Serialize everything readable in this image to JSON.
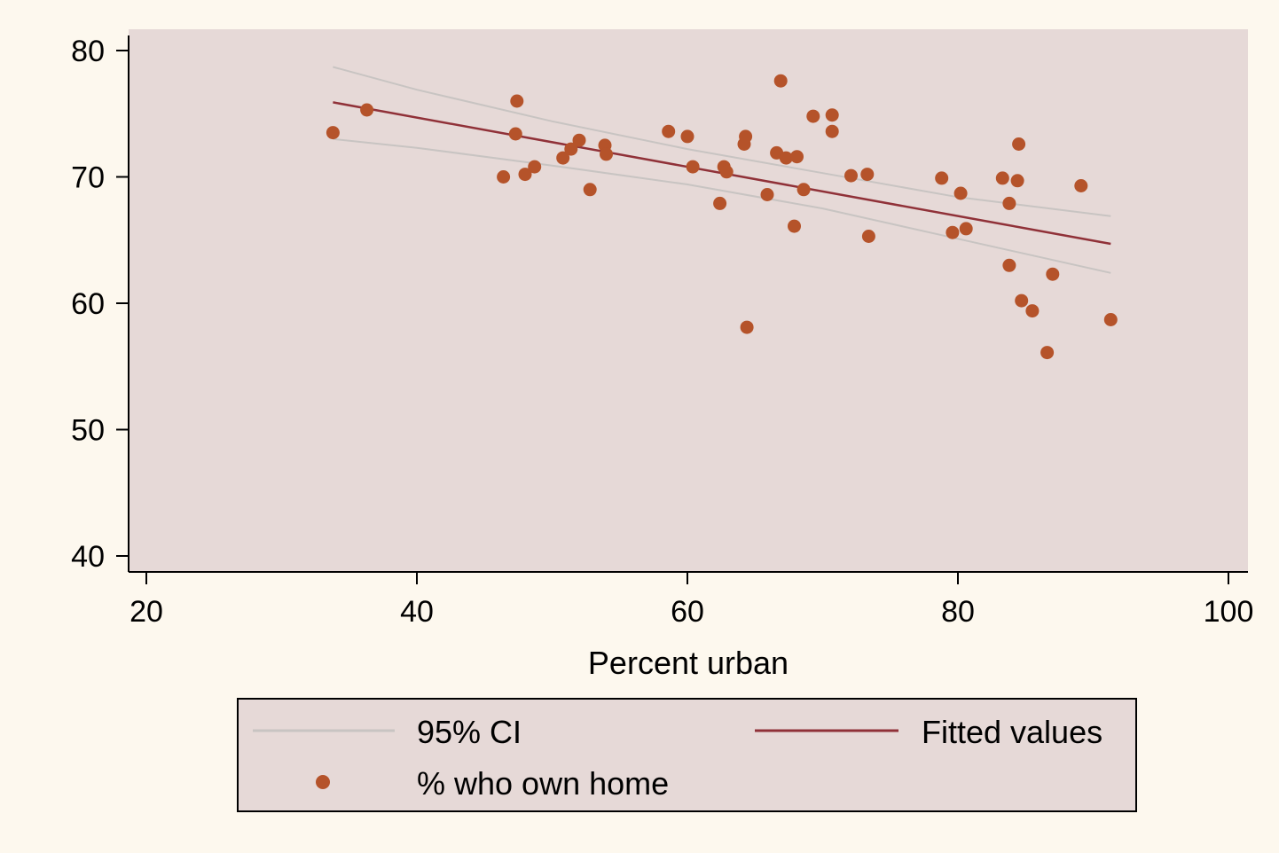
{
  "chart_data": {
    "type": "scatter",
    "title": "",
    "xlabel": "Percent urban",
    "ylabel": "",
    "xlim": [
      20,
      100
    ],
    "ylim": [
      40,
      80
    ],
    "x_ticks": [
      20,
      40,
      60,
      80,
      100
    ],
    "y_ticks": [
      40,
      50,
      60,
      70,
      80
    ],
    "x_tick_labels": [
      "20",
      "40",
      "60",
      "80",
      "100"
    ],
    "y_tick_labels": [
      "40",
      "50",
      "60",
      "70",
      "80"
    ],
    "grid": false,
    "legend_position": "bottom",
    "series": [
      {
        "name": "% who own home",
        "kind": "scatter",
        "color": "#b5532a",
        "points": [
          [
            33.8,
            73.5
          ],
          [
            36.3,
            75.3
          ],
          [
            46.4,
            70.0
          ],
          [
            47.3,
            73.4
          ],
          [
            47.4,
            76.0
          ],
          [
            48.0,
            70.2
          ],
          [
            48.7,
            70.8
          ],
          [
            50.8,
            71.5
          ],
          [
            51.4,
            72.2
          ],
          [
            52.0,
            72.9
          ],
          [
            52.8,
            69.0
          ],
          [
            53.9,
            72.5
          ],
          [
            54.0,
            71.8
          ],
          [
            58.6,
            73.6
          ],
          [
            60.0,
            73.2
          ],
          [
            60.4,
            70.8
          ],
          [
            62.4,
            67.9
          ],
          [
            62.7,
            70.8
          ],
          [
            62.9,
            70.4
          ],
          [
            64.2,
            72.6
          ],
          [
            64.3,
            73.2
          ],
          [
            64.4,
            58.1
          ],
          [
            65.9,
            68.6
          ],
          [
            66.6,
            71.9
          ],
          [
            66.9,
            77.6
          ],
          [
            67.3,
            71.5
          ],
          [
            67.9,
            66.1
          ],
          [
            68.1,
            71.6
          ],
          [
            68.6,
            69.0
          ],
          [
            69.3,
            74.8
          ],
          [
            70.7,
            73.6
          ],
          [
            70.7,
            74.9
          ],
          [
            72.1,
            70.1
          ],
          [
            73.3,
            70.2
          ],
          [
            73.4,
            65.3
          ],
          [
            78.8,
            69.9
          ],
          [
            79.6,
            65.6
          ],
          [
            80.2,
            68.7
          ],
          [
            80.6,
            65.9
          ],
          [
            83.3,
            69.9
          ],
          [
            83.8,
            63.0
          ],
          [
            83.8,
            67.9
          ],
          [
            84.4,
            69.7
          ],
          [
            84.5,
            72.6
          ],
          [
            84.7,
            60.2
          ],
          [
            85.5,
            59.4
          ],
          [
            86.6,
            56.1
          ],
          [
            87.0,
            62.3
          ],
          [
            89.1,
            69.3
          ],
          [
            91.3,
            58.7
          ]
        ]
      },
      {
        "name": "Fitted values",
        "kind": "line",
        "color": "#903138",
        "points": [
          [
            33.8,
            75.9
          ],
          [
            91.3,
            64.7
          ]
        ]
      },
      {
        "name": "95% CI",
        "kind": "line",
        "color": "#c8c4c2",
        "points": [
          [
            33.8,
            78.7
          ],
          [
            40,
            76.9
          ],
          [
            50,
            74.4
          ],
          [
            60,
            72.2
          ],
          [
            70,
            70.3
          ],
          [
            80,
            68.4
          ],
          [
            91.3,
            66.9
          ]
        ]
      },
      {
        "name": "",
        "kind": "line",
        "color": "#c8c4c2",
        "points": [
          [
            33.8,
            73.0
          ],
          [
            40,
            72.3
          ],
          [
            50,
            70.9
          ],
          [
            60,
            69.4
          ],
          [
            70,
            67.5
          ],
          [
            80,
            65.1
          ],
          [
            91.3,
            62.4
          ]
        ]
      }
    ],
    "legend": [
      {
        "label": "95% CI",
        "kind": "line",
        "color": "#c8c4c2"
      },
      {
        "label": "Fitted values",
        "kind": "line",
        "color": "#903138"
      },
      {
        "label": "% who own home",
        "kind": "marker",
        "color": "#b5532a"
      }
    ],
    "colors": {
      "background": "#fdf8ee",
      "plot_background": "#e6d9d7",
      "axis": "#000000"
    }
  }
}
